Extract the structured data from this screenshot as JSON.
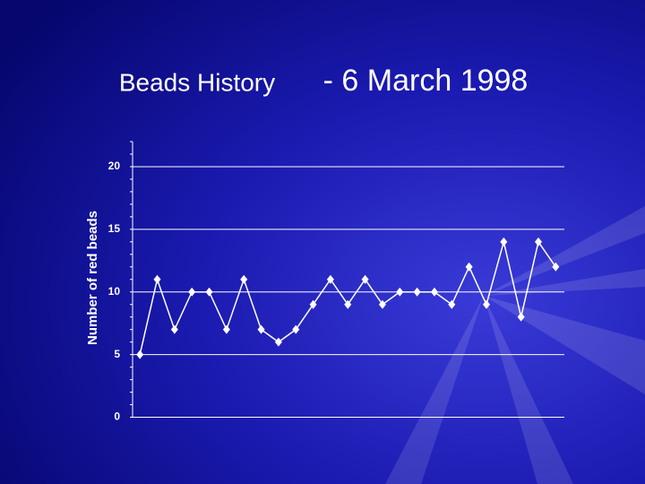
{
  "chart_data": {
    "type": "line",
    "title": [
      "Beads History",
      "- 6 March 1998"
    ],
    "y_label": "Number of red beads",
    "categories": [
      null,
      null,
      null,
      null,
      null,
      null,
      null,
      null,
      null,
      null,
      null,
      null,
      null,
      null,
      null,
      null,
      null,
      null,
      null,
      null,
      null,
      null,
      null,
      null,
      null
    ],
    "values": [
      5,
      11,
      7,
      10,
      10,
      7,
      11,
      7,
      6,
      7,
      9,
      11,
      9,
      11,
      9,
      10,
      10,
      10,
      9,
      12,
      9,
      14,
      8,
      14,
      12
    ],
    "color": "#ffffff",
    "ylim": [
      0,
      22
    ],
    "yticks": [
      0,
      5,
      10,
      15,
      20
    ],
    "grid": true
  }
}
